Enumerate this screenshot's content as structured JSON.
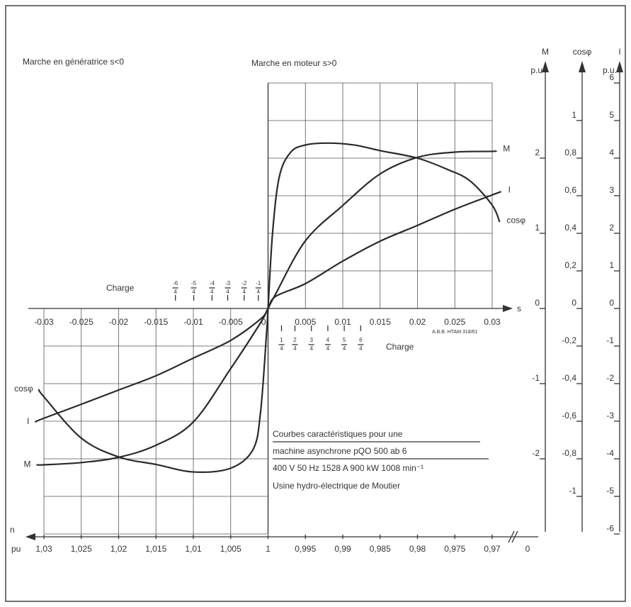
{
  "chart_data": {
    "type": "line",
    "annotations": {
      "generator": "Marche en génératrice s<0",
      "motor": "Marche en moteur s>0",
      "reference": "A.B.B. HTAM 318/61"
    },
    "caption": [
      "Courbes caractéristiques pour une",
      "machine asynchrone   pQO 500 ab 6",
      "400 V  50 Hz  1528 A  900 kW  1008 min⁻¹",
      "Usine hydro-électrique de Moutier"
    ],
    "x_label": "s",
    "xlim": [
      -0.03,
      0.03
    ],
    "xticks": [
      -0.03,
      -0.025,
      -0.02,
      -0.015,
      -0.01,
      -0.005,
      0,
      0.005,
      0.01,
      0.015,
      0.02,
      0.025,
      0.03
    ],
    "grid": true,
    "n_axis": {
      "label": "n",
      "unit": "pu",
      "lim": [
        1.03,
        0.97
      ],
      "ticks": [
        {
          "value": 1.03,
          "label": "1,03"
        },
        {
          "value": 1.025,
          "label": "1,025"
        },
        {
          "value": 1.02,
          "label": "1,02"
        },
        {
          "value": 1.015,
          "label": "1,015"
        },
        {
          "value": 1.01,
          "label": "1,01"
        },
        {
          "value": 1.005,
          "label": "1,005"
        },
        1,
        {
          "value": 0.995,
          "label": "0,995"
        },
        {
          "value": 0.99,
          "label": "0,99"
        },
        {
          "value": 0.985,
          "label": "0,985"
        },
        {
          "value": 0.98,
          "label": "0,98"
        },
        {
          "value": 0.975,
          "label": "0,975"
        },
        {
          "value": 0.97,
          "label": "0,97"
        }
      ],
      "end_tick": 0
    },
    "y_axes": [
      {
        "label": "M",
        "unit": "p.u",
        "lim": [
          -3,
          3
        ],
        "ticks": [
          2,
          1,
          0,
          -1,
          -2
        ]
      },
      {
        "label": "cosφ",
        "lim": [
          -1.2,
          1.2
        ],
        "ticks": [
          1,
          {
            "value": 0.8,
            "label": "0,8"
          },
          {
            "value": 0.6,
            "label": "0,6"
          },
          {
            "value": 0.4,
            "label": "0,4"
          },
          {
            "value": 0.2,
            "label": "0,2"
          },
          0,
          {
            "value": -0.2,
            "label": "-0,2"
          },
          {
            "value": -0.4,
            "label": "-0,4"
          },
          {
            "value": -0.6,
            "label": "-0,6"
          },
          {
            "value": -0.8,
            "label": "-0,8"
          },
          -1
        ]
      },
      {
        "label": "I",
        "unit": "p.u.",
        "lim": [
          -6,
          6
        ],
        "ticks": [
          6,
          5,
          4,
          3,
          2,
          1,
          0,
          -1,
          -2,
          -3,
          -4,
          -5,
          -6
        ]
      }
    ],
    "charge": {
      "label": "Charge",
      "marks": [
        {
          "s": -0.0124,
          "numerator": "-6",
          "denominator": "4"
        },
        {
          "s": -0.00995,
          "numerator": "-5",
          "denominator": "4"
        },
        {
          "s": -0.0075,
          "numerator": "-4",
          "denominator": "4"
        },
        {
          "s": -0.0054,
          "numerator": "-3",
          "denominator": "4"
        },
        {
          "s": -0.0032,
          "numerator": "-2",
          "denominator": "4"
        },
        {
          "s": -0.0013,
          "numerator": "-1",
          "denominator": "4"
        },
        {
          "s": 0.0018,
          "numerator": "1",
          "denominator": "4"
        },
        {
          "s": 0.0036,
          "numerator": "2",
          "denominator": "4"
        },
        {
          "s": 0.0058,
          "numerator": "3",
          "denominator": "4"
        },
        {
          "s": 0.008,
          "numerator": "4",
          "denominator": "4"
        },
        {
          "s": 0.0102,
          "numerator": "5",
          "denominator": "4"
        },
        {
          "s": 0.0124,
          "numerator": "6",
          "denominator": "4"
        }
      ]
    },
    "series": [
      {
        "name": "M",
        "axis": 0,
        "color": "#2a2a2a",
        "x": [
          -0.031,
          -0.03,
          -0.025,
          -0.02,
          -0.015,
          -0.01,
          -0.005,
          -0.001,
          0,
          0.001,
          0.005,
          0.01,
          0.015,
          0.02,
          0.025,
          0.03,
          0.0305
        ],
        "values": [
          -2.08,
          -2.08,
          -2.05,
          -1.98,
          -1.82,
          -1.51,
          -0.8,
          -0.19,
          0,
          0.19,
          0.9,
          1.37,
          1.79,
          2.01,
          2.08,
          2.09,
          2.1
        ]
      },
      {
        "name": "I",
        "axis": 2,
        "color": "#2a2a2a",
        "x": [
          -0.0312,
          -0.03,
          -0.025,
          -0.02,
          -0.015,
          -0.01,
          -0.005,
          -0.001,
          0,
          0.001,
          0.005,
          0.01,
          0.015,
          0.02,
          0.025,
          0.03,
          0.0312
        ],
        "values": [
          -3.02,
          -2.92,
          -2.55,
          -2.17,
          -1.79,
          -1.32,
          -0.85,
          -0.28,
          0,
          0.32,
          0.66,
          1.26,
          1.79,
          2.21,
          2.64,
          3.02,
          3.11
        ]
      },
      {
        "name": "cosφ",
        "axis": 1,
        "color": "#2a2a2a",
        "x": [
          -0.0307,
          -0.03,
          -0.025,
          -0.02,
          -0.015,
          -0.01,
          -0.005,
          -0.002,
          -0.001,
          -0.0002,
          0,
          0.0006,
          0.0015,
          0.003,
          0.005,
          0.008,
          0.0115,
          0.015,
          0.02,
          0.024,
          0.027,
          0.03,
          0.031
        ],
        "values": [
          -0.43,
          -0.47,
          -0.69,
          -0.79,
          -0.83,
          -0.87,
          -0.85,
          -0.75,
          -0.55,
          -0.13,
          0,
          0.4,
          0.7,
          0.83,
          0.87,
          0.88,
          0.87,
          0.84,
          0.8,
          0.74,
          0.68,
          0.55,
          0.46
        ]
      }
    ]
  }
}
